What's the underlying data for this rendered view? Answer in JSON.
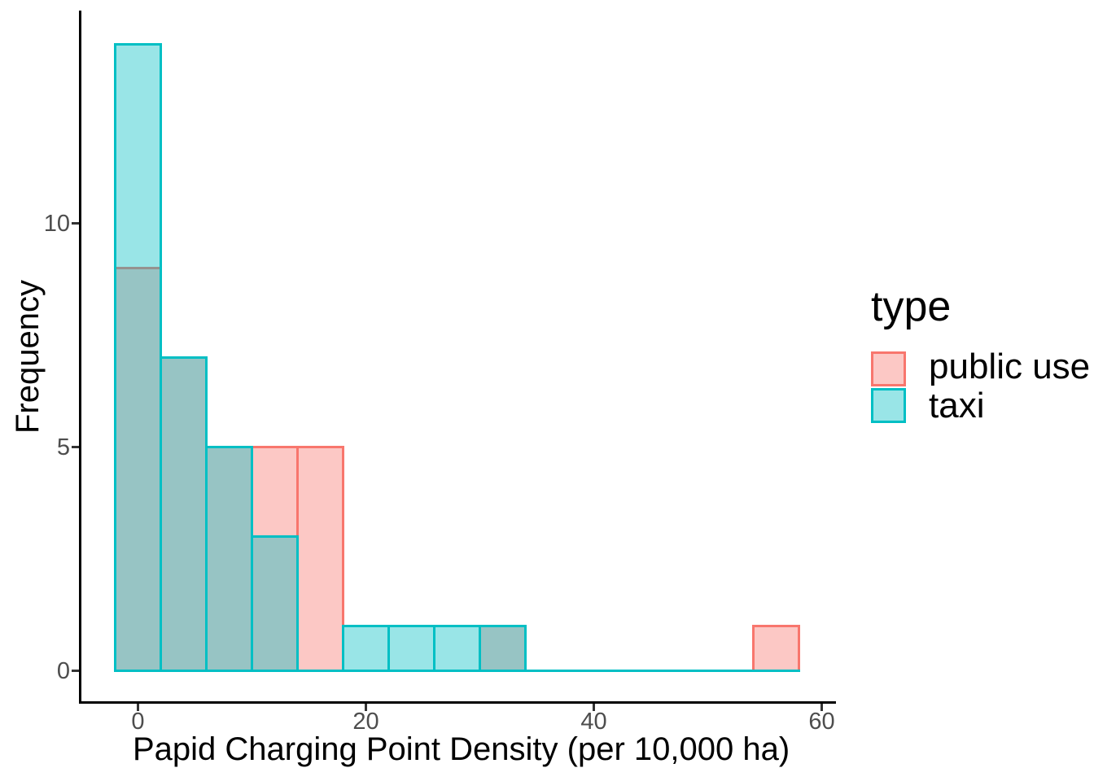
{
  "chart_data": {
    "type": "histogram",
    "xlabel": "Papid Charging Point Density (per 10,000 ha)",
    "ylabel": "Frequency",
    "legend_title": "type",
    "legend_position": "right",
    "grid": false,
    "bin_width": 4,
    "bin_edges": [
      -2,
      2,
      6,
      10,
      14,
      18,
      22,
      26,
      30,
      34,
      38,
      42,
      46,
      50,
      54,
      58
    ],
    "series": [
      {
        "name": "public use",
        "color": "#F8766D",
        "fill_alpha": 0.4,
        "counts": [
          9,
          7,
          5,
          5,
          5,
          0,
          0,
          0,
          1,
          0,
          0,
          0,
          0,
          0,
          1
        ]
      },
      {
        "name": "taxi",
        "color": "#00BFC4",
        "fill_alpha": 0.4,
        "counts": [
          14,
          7,
          5,
          3,
          0,
          1,
          1,
          1,
          1,
          0,
          0,
          0,
          0,
          0,
          0
        ]
      }
    ],
    "x_ticks": [
      0,
      20,
      40,
      60
    ],
    "y_ticks": [
      0,
      5,
      10
    ],
    "xlim": [
      -5.2,
      61.6
    ],
    "ylim": [
      0,
      14.75
    ]
  },
  "style": {
    "background": "#FFFFFF",
    "axis_line_color": "#000000",
    "tick_mark_color": "#333333",
    "tick_label_color": "#4D4D4D",
    "text_color": "#000000"
  }
}
